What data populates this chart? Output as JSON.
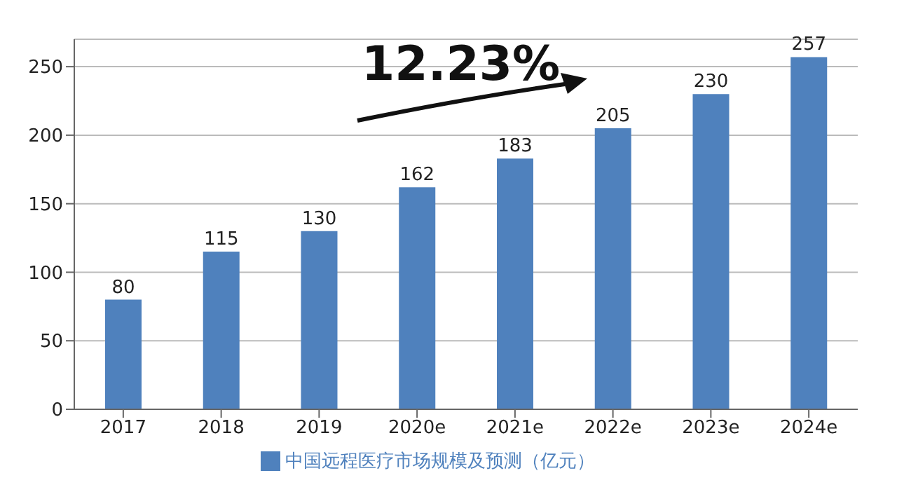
{
  "chart_data": {
    "type": "bar",
    "categories": [
      "2017",
      "2018",
      "2019",
      "2020e",
      "2021e",
      "2022e",
      "2023e",
      "2024e"
    ],
    "series": [
      {
        "name": "中国远程医疗市场规模及预测（亿元）",
        "color": "#4f81bd",
        "values": [
          80,
          115,
          130,
          162,
          183,
          205,
          230,
          257
        ]
      }
    ],
    "ylim": [
      0,
      270
    ],
    "yticks": [
      0,
      50,
      100,
      150,
      200,
      250
    ],
    "grid": "y",
    "legend": "bottom",
    "data_labels": true,
    "annotations": [
      "12.23%"
    ]
  }
}
